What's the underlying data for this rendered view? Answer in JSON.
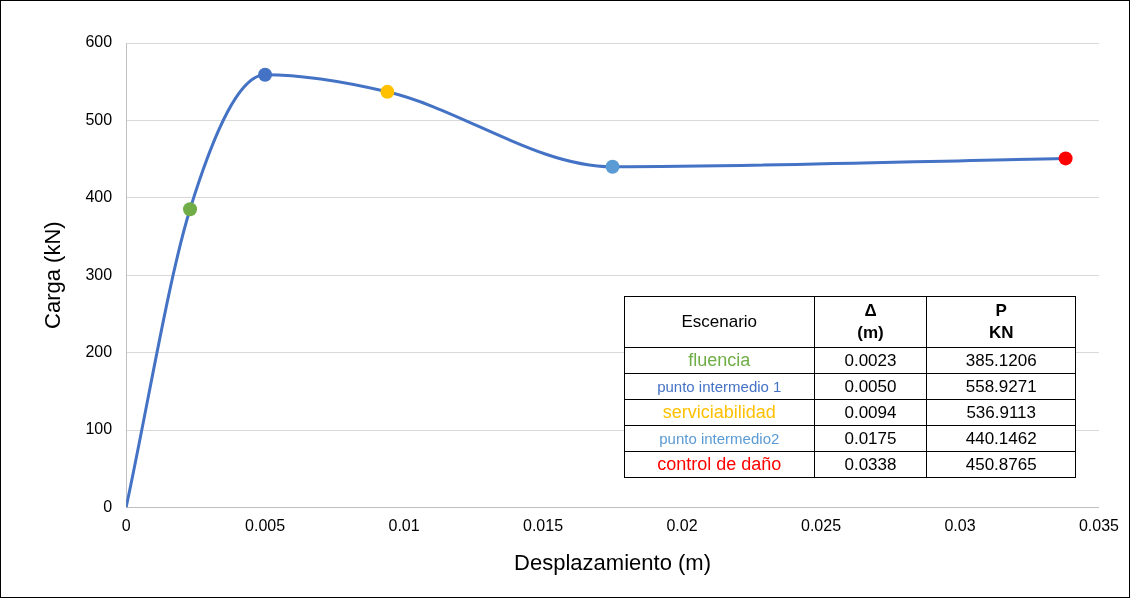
{
  "chart_data": {
    "type": "line",
    "xlabel": "Desplazamiento (m)",
    "ylabel": "Carga (kN)",
    "xlim": [
      0,
      0.035
    ],
    "xticks": [
      0,
      0.005,
      0.01,
      0.015,
      0.02,
      0.025,
      0.03,
      0.035
    ],
    "ylim": [
      0,
      600
    ],
    "yticks": [
      0,
      100,
      200,
      300,
      400,
      500,
      600
    ],
    "grid": "y",
    "legend": false,
    "marker": "circle",
    "annotations": [
      "Escenario",
      "Δ\n(m)",
      "P\nKN",
      "0.0023",
      "385.1206",
      "0.0050",
      "558.9271",
      "0.0094",
      "536.9113",
      "0.0175",
      "440.1462",
      "0.0338",
      "450.8765"
    ],
    "series": [
      {
        "type": "line",
        "color": "#4472c4",
        "marker": "none",
        "x": [
          0,
          0.0023,
          0.005,
          0.0094,
          0.0175,
          0.0338
        ],
        "values": [
          0,
          385.1206,
          558.9271,
          536.9113,
          440.1462,
          450.8765
        ]
      },
      {
        "type": "scatter",
        "name": "fluencia",
        "color": "#70ad47",
        "x": [
          0.0023
        ],
        "values": [
          385.1206
        ]
      },
      {
        "type": "scatter",
        "name": "punto intermedio 1",
        "color": "#4472c4",
        "x": [
          0.005
        ],
        "values": [
          558.9271
        ]
      },
      {
        "type": "scatter",
        "name": "serviciabilidad",
        "color": "#ffc000",
        "x": [
          0.0094
        ],
        "values": [
          536.9113
        ]
      },
      {
        "type": "scatter",
        "name": "punto intermedio2",
        "color": "#5b9bd5",
        "x": [
          0.0175
        ],
        "values": [
          440.1462
        ]
      },
      {
        "type": "scatter",
        "name": "control de daño",
        "color": "#ff0000",
        "x": [
          0.0338
        ],
        "values": [
          450.8765
        ]
      }
    ]
  }
}
